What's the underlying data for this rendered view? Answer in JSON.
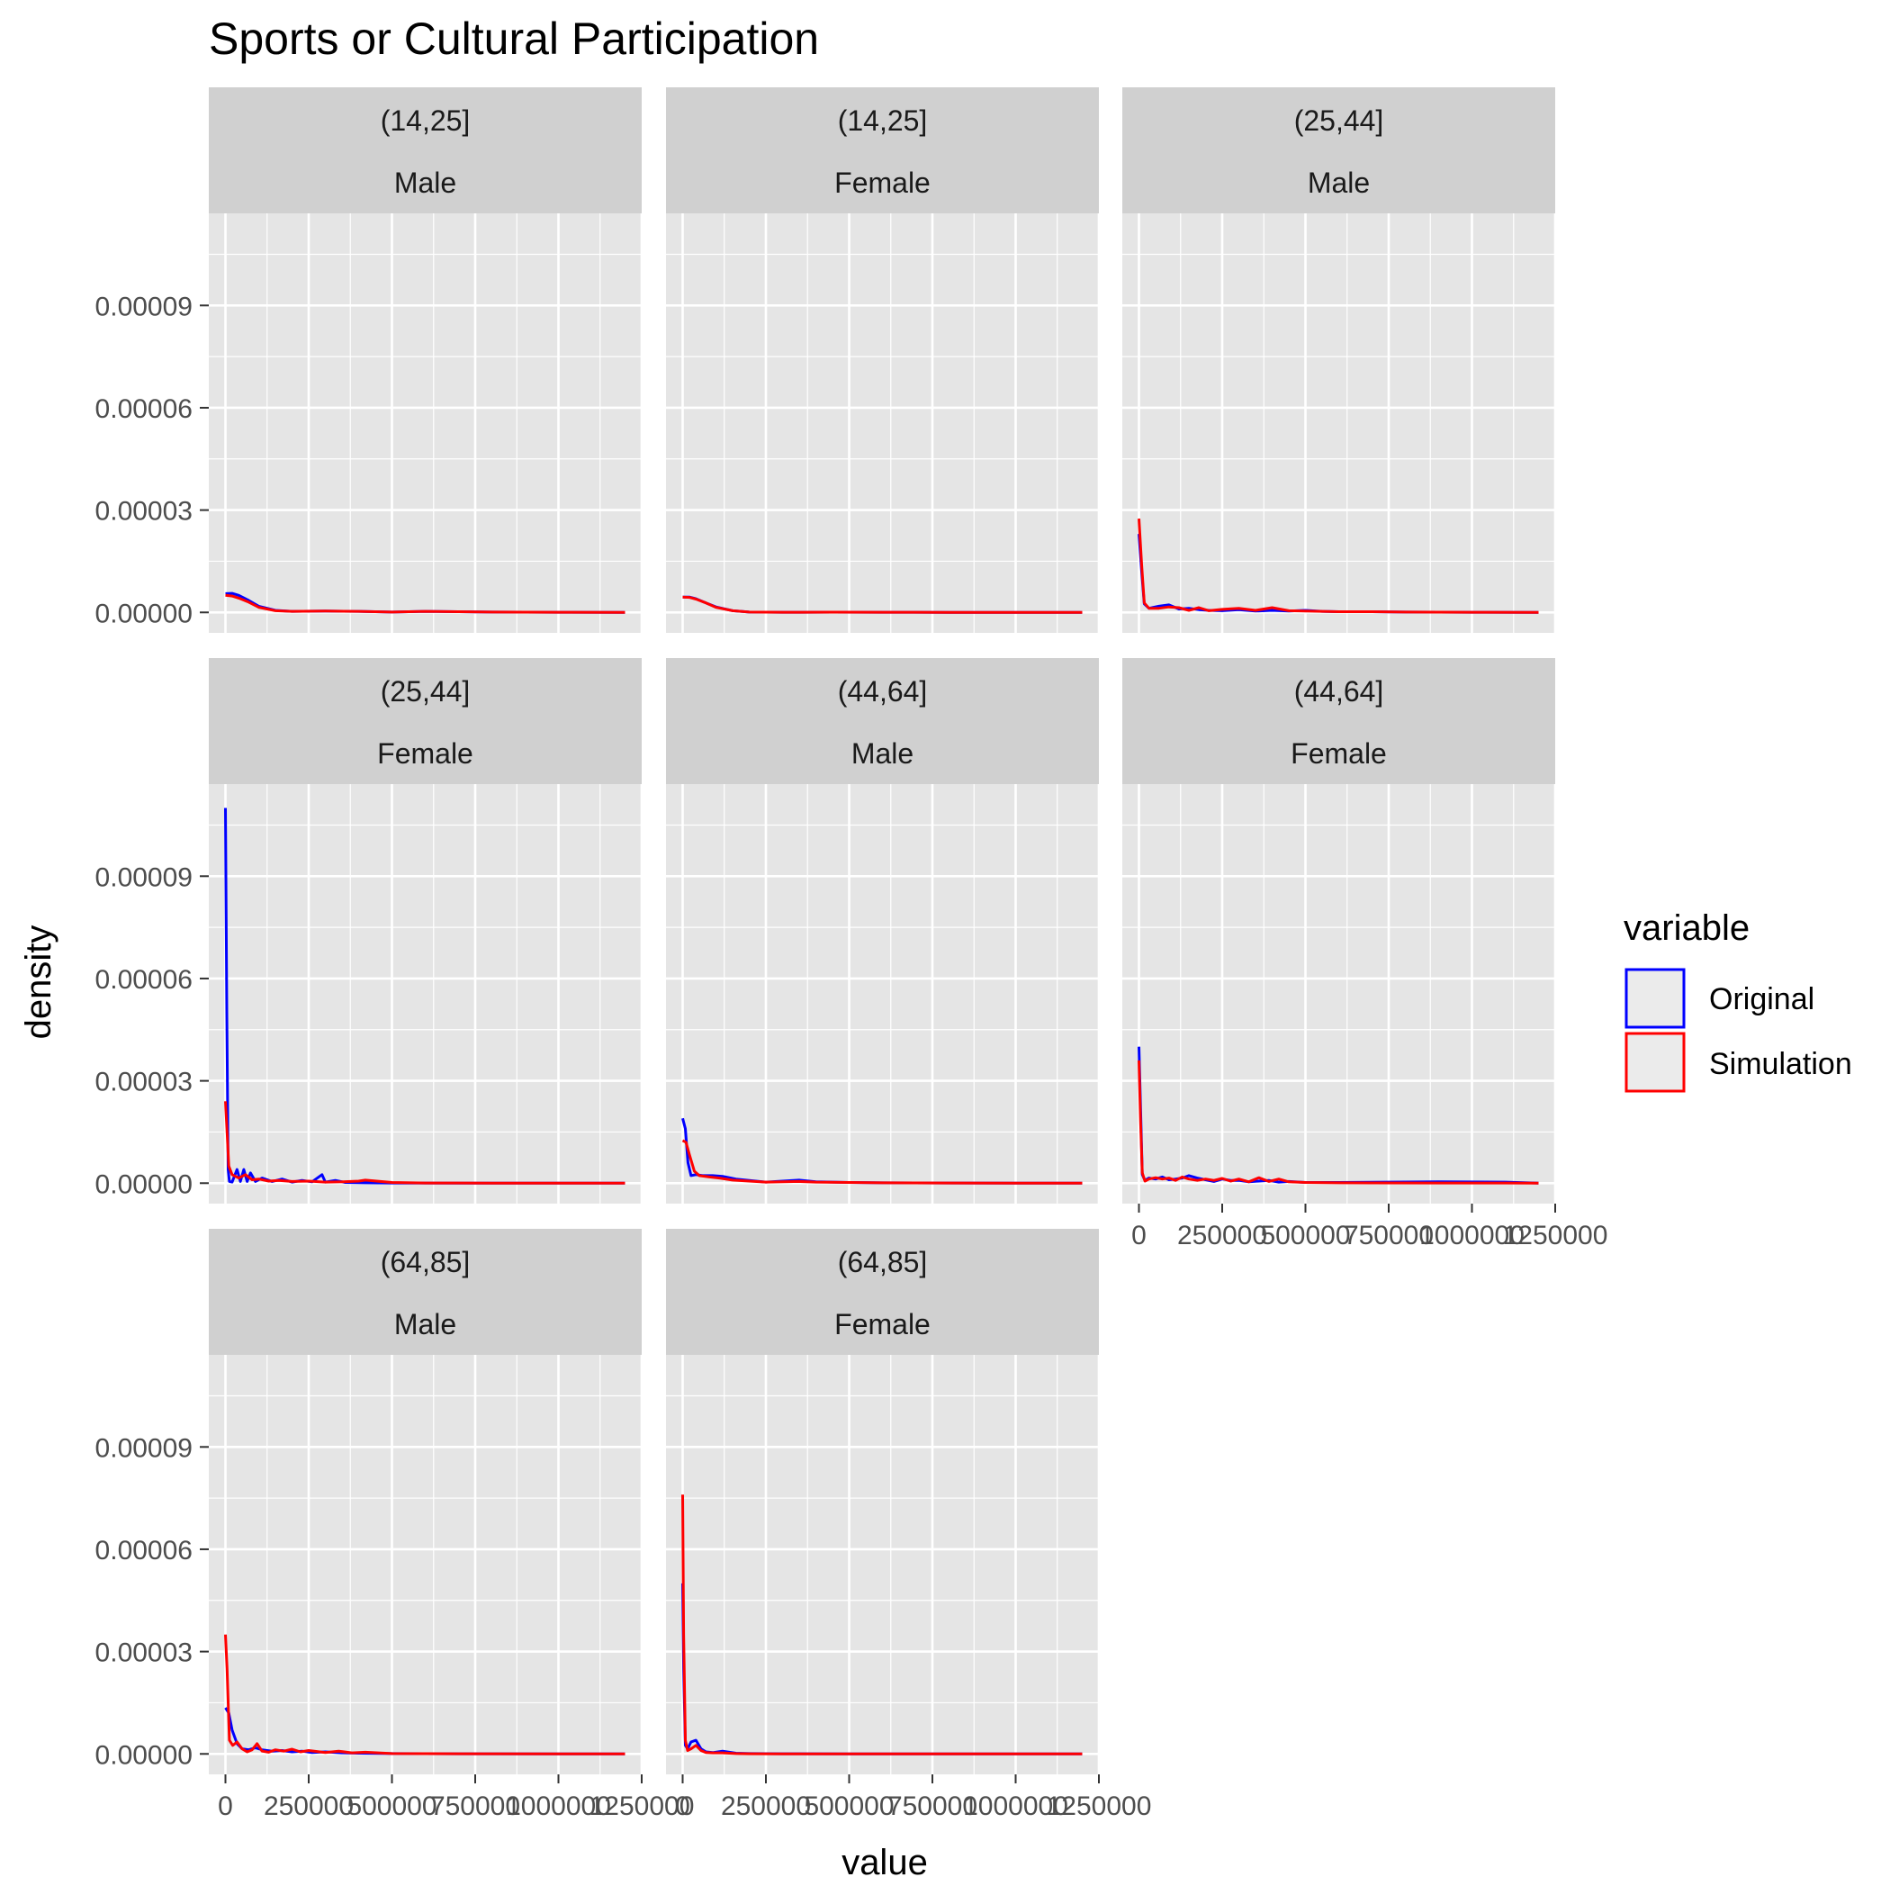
{
  "chart_data": {
    "type": "line",
    "title": "Sports or Cultural Participation",
    "xlabel": "value",
    "ylabel": "density",
    "xlim": [
      -50000,
      1250000
    ],
    "ylim": [
      -6e-06,
      0.000117
    ],
    "x_ticks": [
      0,
      250000,
      500000,
      750000,
      1000000,
      1250000
    ],
    "x_tick_labels": [
      "0",
      "250000",
      "500000",
      "750000",
      "1000000",
      "1250000"
    ],
    "y_ticks": [
      0,
      3e-05,
      6e-05,
      9e-05
    ],
    "y_tick_labels": [
      "0.00000",
      "0.00003",
      "0.00006",
      "0.00009"
    ],
    "grid": true,
    "legend": {
      "title": "variable",
      "position": "right",
      "entries": [
        {
          "name": "Original",
          "color": "#0000ff"
        },
        {
          "name": "Simulation",
          "color": "#ff0000"
        }
      ]
    },
    "colors": {
      "Original": "#0000ff",
      "Simulation": "#ff0000",
      "panel_bg": "#e5e5e5",
      "strip_bg": "#d0d0d0"
    },
    "panels": [
      {
        "age": "(14,25]",
        "sex": "Male",
        "series": [
          {
            "name": "Original",
            "x": [
              0,
              20000,
              40000,
              70000,
              100000,
              150000,
              200000,
              300000,
              400000,
              500000,
              600000,
              700000,
              800000,
              1000000,
              1200000
            ],
            "y": [
              5.5e-06,
              5.6e-06,
              5e-06,
              3.5e-06,
              1.8e-06,
              6e-07,
              3e-07,
              4e-07,
              3e-07,
              1e-07,
              3e-07,
              2e-07,
              1e-07,
              5e-08,
              0
            ]
          },
          {
            "name": "Simulation",
            "x": [
              0,
              20000,
              40000,
              70000,
              100000,
              150000,
              200000,
              300000,
              400000,
              500000,
              600000,
              700000,
              800000,
              1000000,
              1200000
            ],
            "y": [
              5e-06,
              4.8e-06,
              4.2e-06,
              3e-06,
              1.5e-06,
              5e-07,
              3e-07,
              4e-07,
              3e-07,
              1e-07,
              3e-07,
              2e-07,
              1e-07,
              5e-08,
              0
            ]
          }
        ]
      },
      {
        "age": "(14,25]",
        "sex": "Female",
        "series": [
          {
            "name": "Original",
            "x": [
              0,
              20000,
              40000,
              70000,
              100000,
              150000,
              200000,
              300000,
              450000,
              600000,
              800000,
              1000000,
              1200000
            ],
            "y": [
              4.5e-06,
              4.5e-06,
              4e-06,
              2.8e-06,
              1.6e-06,
              5e-07,
              1e-07,
              5e-08,
              8e-08,
              5e-08,
              2e-08,
              1e-08,
              0
            ]
          },
          {
            "name": "Simulation",
            "x": [
              0,
              20000,
              40000,
              70000,
              100000,
              150000,
              200000,
              300000,
              450000,
              600000,
              800000,
              1000000,
              1200000
            ],
            "y": [
              4.5e-06,
              4.4e-06,
              3.9e-06,
              2.8e-06,
              1.5e-06,
              5e-07,
              1e-07,
              5e-08,
              8e-08,
              5e-08,
              2e-08,
              1e-08,
              0
            ]
          }
        ]
      },
      {
        "age": "(25,44]",
        "sex": "Male",
        "series": [
          {
            "name": "Original",
            "x": [
              0,
              8000,
              16000,
              30000,
              60000,
              90000,
              120000,
              150000,
              180000,
              210000,
              250000,
              300000,
              350000,
              400000,
              450000,
              500000,
              550000,
              600000,
              700000,
              800000,
              1000000,
              1200000
            ],
            "y": [
              2.3e-05,
              1.2e-05,
              2.5e-06,
              1.2e-06,
              1.8e-06,
              2.2e-06,
              1e-06,
              1.2e-06,
              8e-07,
              6e-07,
              5e-07,
              8e-07,
              4e-07,
              6e-07,
              4e-07,
              6e-07,
              3e-07,
              2e-07,
              2e-07,
              1e-07,
              5e-08,
              0
            ]
          },
          {
            "name": "Simulation",
            "x": [
              0,
              8000,
              16000,
              30000,
              60000,
              90000,
              120000,
              150000,
              180000,
              210000,
              250000,
              300000,
              350000,
              400000,
              450000,
              500000,
              550000,
              600000,
              700000,
              800000,
              1000000,
              1200000
            ],
            "y": [
              2.75e-05,
              1.4e-05,
              2.8e-06,
              1.2e-06,
              1.2e-06,
              1.6e-06,
              1.4e-06,
              6e-07,
              1.4e-06,
              5e-07,
              9e-07,
              1.2e-06,
              6e-07,
              1.4e-06,
              5e-07,
              4e-07,
              3e-07,
              2e-07,
              2e-07,
              1e-07,
              5e-08,
              0
            ]
          }
        ]
      },
      {
        "age": "(25,44]",
        "sex": "Female",
        "series": [
          {
            "name": "Original",
            "x": [
              0,
              4000,
              8000,
              12000,
              20000,
              35000,
              45000,
              55000,
              65000,
              75000,
              90000,
              110000,
              140000,
              170000,
              200000,
              230000,
              260000,
              290000,
              300000,
              330000,
              360000,
              420000,
              500000,
              700000,
              1000000,
              1200000
            ],
            "y": [
              0.00011,
              5e-05,
              4e-06,
              5e-07,
              3e-07,
              4e-06,
              5e-07,
              4e-06,
              5e-07,
              3e-06,
              5e-07,
              1.5e-06,
              5e-07,
              1.2e-06,
              3e-07,
              8e-07,
              4e-07,
              2.5e-06,
              3e-07,
              8e-07,
              2e-07,
              1e-07,
              5e-08,
              2e-08,
              1e-08,
              0
            ]
          },
          {
            "name": "Simulation",
            "x": [
              0,
              5000,
              10000,
              20000,
              40000,
              60000,
              80000,
              100000,
              130000,
              160000,
              200000,
              250000,
              300000,
              350000,
              400000,
              420000,
              500000,
              600000,
              800000,
              1000000,
              1200000
            ],
            "y": [
              2.4e-05,
              1.5e-05,
              5e-06,
              2.5e-06,
              1.5e-06,
              2.5e-06,
              1e-06,
              1.2e-06,
              6e-07,
              8e-07,
              5e-07,
              6e-07,
              3e-07,
              4e-07,
              6e-07,
              9e-07,
              2e-07,
              5e-08,
              2e-08,
              1e-08,
              0
            ]
          }
        ]
      },
      {
        "age": "(44,64]",
        "sex": "Male",
        "series": [
          {
            "name": "Original",
            "x": [
              0,
              8000,
              16000,
              25000,
              40000,
              60000,
              90000,
              120000,
              160000,
              200000,
              250000,
              300000,
              350000,
              400000,
              500000,
              600000,
              800000,
              1000000,
              1200000
            ],
            "y": [
              1.9e-05,
              1.6e-05,
              6e-06,
              2.2e-06,
              2.5e-06,
              2.2e-06,
              2.2e-06,
              2e-06,
              1.2e-06,
              8e-07,
              3e-07,
              6e-07,
              9e-07,
              4e-07,
              2e-07,
              1e-07,
              5e-08,
              2e-08,
              0
            ]
          },
          {
            "name": "Simulation",
            "x": [
              0,
              10000,
              20000,
              35000,
              50000,
              80000,
              110000,
              150000,
              200000,
              250000,
              300000,
              350000,
              400000,
              500000,
              600000,
              800000,
              1000000,
              1200000
            ],
            "y": [
              1.25e-05,
              1.2e-05,
              8.5e-06,
              3.5e-06,
              2.2e-06,
              1.8e-06,
              1.5e-06,
              9e-07,
              6e-07,
              3e-07,
              4e-07,
              5e-07,
              3e-07,
              2e-07,
              1e-07,
              5e-08,
              2e-08,
              0
            ]
          }
        ]
      },
      {
        "age": "(44,64]",
        "sex": "Female",
        "series": [
          {
            "name": "Original",
            "x": [
              0,
              5000,
              10000,
              18000,
              30000,
              50000,
              70000,
              90000,
              110000,
              130000,
              150000,
              175000,
              200000,
              225000,
              250000,
              275000,
              300000,
              330000,
              360000,
              390000,
              420000,
              450000,
              500000,
              600000,
              900000,
              1100000,
              1200000
            ],
            "y": [
              4e-05,
              2.2e-05,
              2.5e-06,
              8e-07,
              1.5e-06,
              1.2e-06,
              1.8e-06,
              1e-06,
              1.2e-06,
              1.5e-06,
              2.2e-06,
              1.5e-06,
              1e-06,
              5e-07,
              1.2e-06,
              8e-07,
              8e-07,
              4e-07,
              6e-07,
              8e-07,
              3e-07,
              5e-07,
              2e-07,
              2e-07,
              4e-07,
              3e-07,
              0
            ]
          },
          {
            "name": "Simulation",
            "x": [
              0,
              5000,
              10000,
              18000,
              30000,
              50000,
              70000,
              90000,
              110000,
              130000,
              150000,
              175000,
              200000,
              225000,
              250000,
              275000,
              300000,
              330000,
              360000,
              390000,
              420000,
              450000,
              500000,
              600000,
              900000,
              1100000,
              1200000
            ],
            "y": [
              3.6e-05,
              1.8e-05,
              3e-06,
              6e-07,
              1.2e-06,
              1.6e-06,
              1.2e-06,
              1.5e-06,
              8e-07,
              1.8e-06,
              1.2e-06,
              8e-07,
              1.2e-06,
              8e-07,
              1.4e-06,
              6e-07,
              1.2e-06,
              4e-07,
              1.6e-06,
              5e-07,
              1.2e-06,
              4e-07,
              2e-07,
              1e-07,
              5e-08,
              5e-08,
              0
            ]
          }
        ]
      },
      {
        "age": "(64,85]",
        "sex": "Male",
        "series": [
          {
            "name": "Original",
            "x": [
              0,
              10000,
              20000,
              35000,
              50000,
              70000,
              90000,
              110000,
              140000,
              170000,
              200000,
              230000,
              260000,
              300000,
              350000,
              400000,
              500000,
              700000,
              1000000,
              1200000
            ],
            "y": [
              1.35e-05,
              1.2e-05,
              7e-06,
              3e-06,
              1.5e-06,
              1.2e-06,
              1.8e-06,
              1.2e-06,
              8e-07,
              1e-06,
              6e-07,
              8e-07,
              4e-07,
              6e-07,
              3e-07,
              2e-07,
              1e-07,
              5e-08,
              2e-08,
              0
            ]
          },
          {
            "name": "Simulation",
            "x": [
              0,
              5000,
              12000,
              22000,
              35000,
              50000,
              65000,
              80000,
              95000,
              110000,
              130000,
              150000,
              175000,
              200000,
              225000,
              250000,
              300000,
              340000,
              380000,
              420000,
              500000,
              700000,
              1000000,
              1200000
            ],
            "y": [
              3.5e-05,
              2.5e-05,
              4e-06,
              2.5e-06,
              3.5e-06,
              1.5e-06,
              6e-07,
              1.2e-06,
              3e-06,
              8e-07,
              5e-07,
              1.2e-06,
              8e-07,
              1.4e-06,
              6e-07,
              1e-06,
              4e-07,
              8e-07,
              3e-07,
              5e-07,
              1e-07,
              5e-08,
              2e-08,
              0
            ]
          }
        ]
      },
      {
        "age": "(64,85]",
        "sex": "Female",
        "series": [
          {
            "name": "Original",
            "x": [
              0,
              3000,
              8000,
              15000,
              25000,
              40000,
              55000,
              70000,
              90000,
              120000,
              160000,
              200000,
              300000,
              500000,
              800000,
              1200000
            ],
            "y": [
              5e-05,
              2.5e-05,
              2.5e-06,
              1.5e-06,
              3.5e-06,
              4e-06,
              1.5e-06,
              6e-07,
              4e-07,
              8e-07,
              2e-07,
              1e-07,
              5e-08,
              2e-08,
              1e-08,
              0
            ]
          },
          {
            "name": "Simulation",
            "x": [
              0,
              3000,
              8000,
              15000,
              25000,
              40000,
              55000,
              70000,
              90000,
              120000,
              160000,
              200000,
              300000,
              500000,
              800000,
              1200000
            ],
            "y": [
              7.6e-05,
              3.5e-05,
              4e-06,
              1e-06,
              1.5e-06,
              2.5e-06,
              1e-06,
              4e-07,
              3e-07,
              3e-07,
              1e-07,
              5e-08,
              2e-08,
              1e-08,
              1e-08,
              0
            ]
          }
        ]
      }
    ]
  }
}
